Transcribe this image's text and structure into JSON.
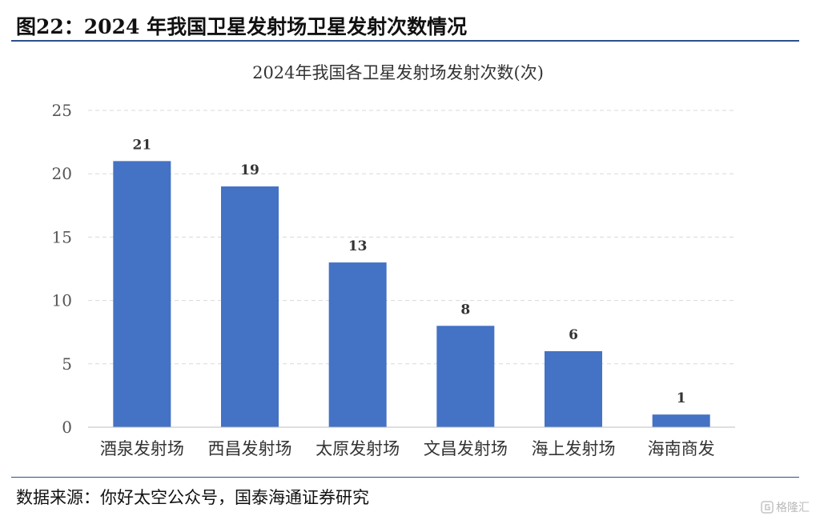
{
  "header": {
    "figure_title": "图22：2024 年我国卫星发射场卫星发射次数情况"
  },
  "footer": {
    "source": "数据来源：你好太空公众号，国泰海通证券研究",
    "watermark": "格隆汇"
  },
  "colors": {
    "bar": "#4472c4",
    "rule": "#2c4f8c",
    "grid": "#d9d9d9"
  },
  "chart_data": {
    "type": "bar",
    "title": "2024年我国各卫星发射场发射次数(次)",
    "categories": [
      "酒泉发射场",
      "西昌发射场",
      "太原发射场",
      "文昌发射场",
      "海上发射场",
      "海南商发"
    ],
    "values": [
      21,
      19,
      13,
      8,
      6,
      1
    ],
    "data_labels": [
      "21",
      "19",
      "13",
      "8",
      "6",
      "1"
    ],
    "xlabel": "",
    "ylabel": "",
    "ylim": [
      0,
      25
    ],
    "yticks": [
      0,
      5,
      10,
      15,
      20,
      25
    ],
    "grid": true,
    "legend": "none"
  }
}
